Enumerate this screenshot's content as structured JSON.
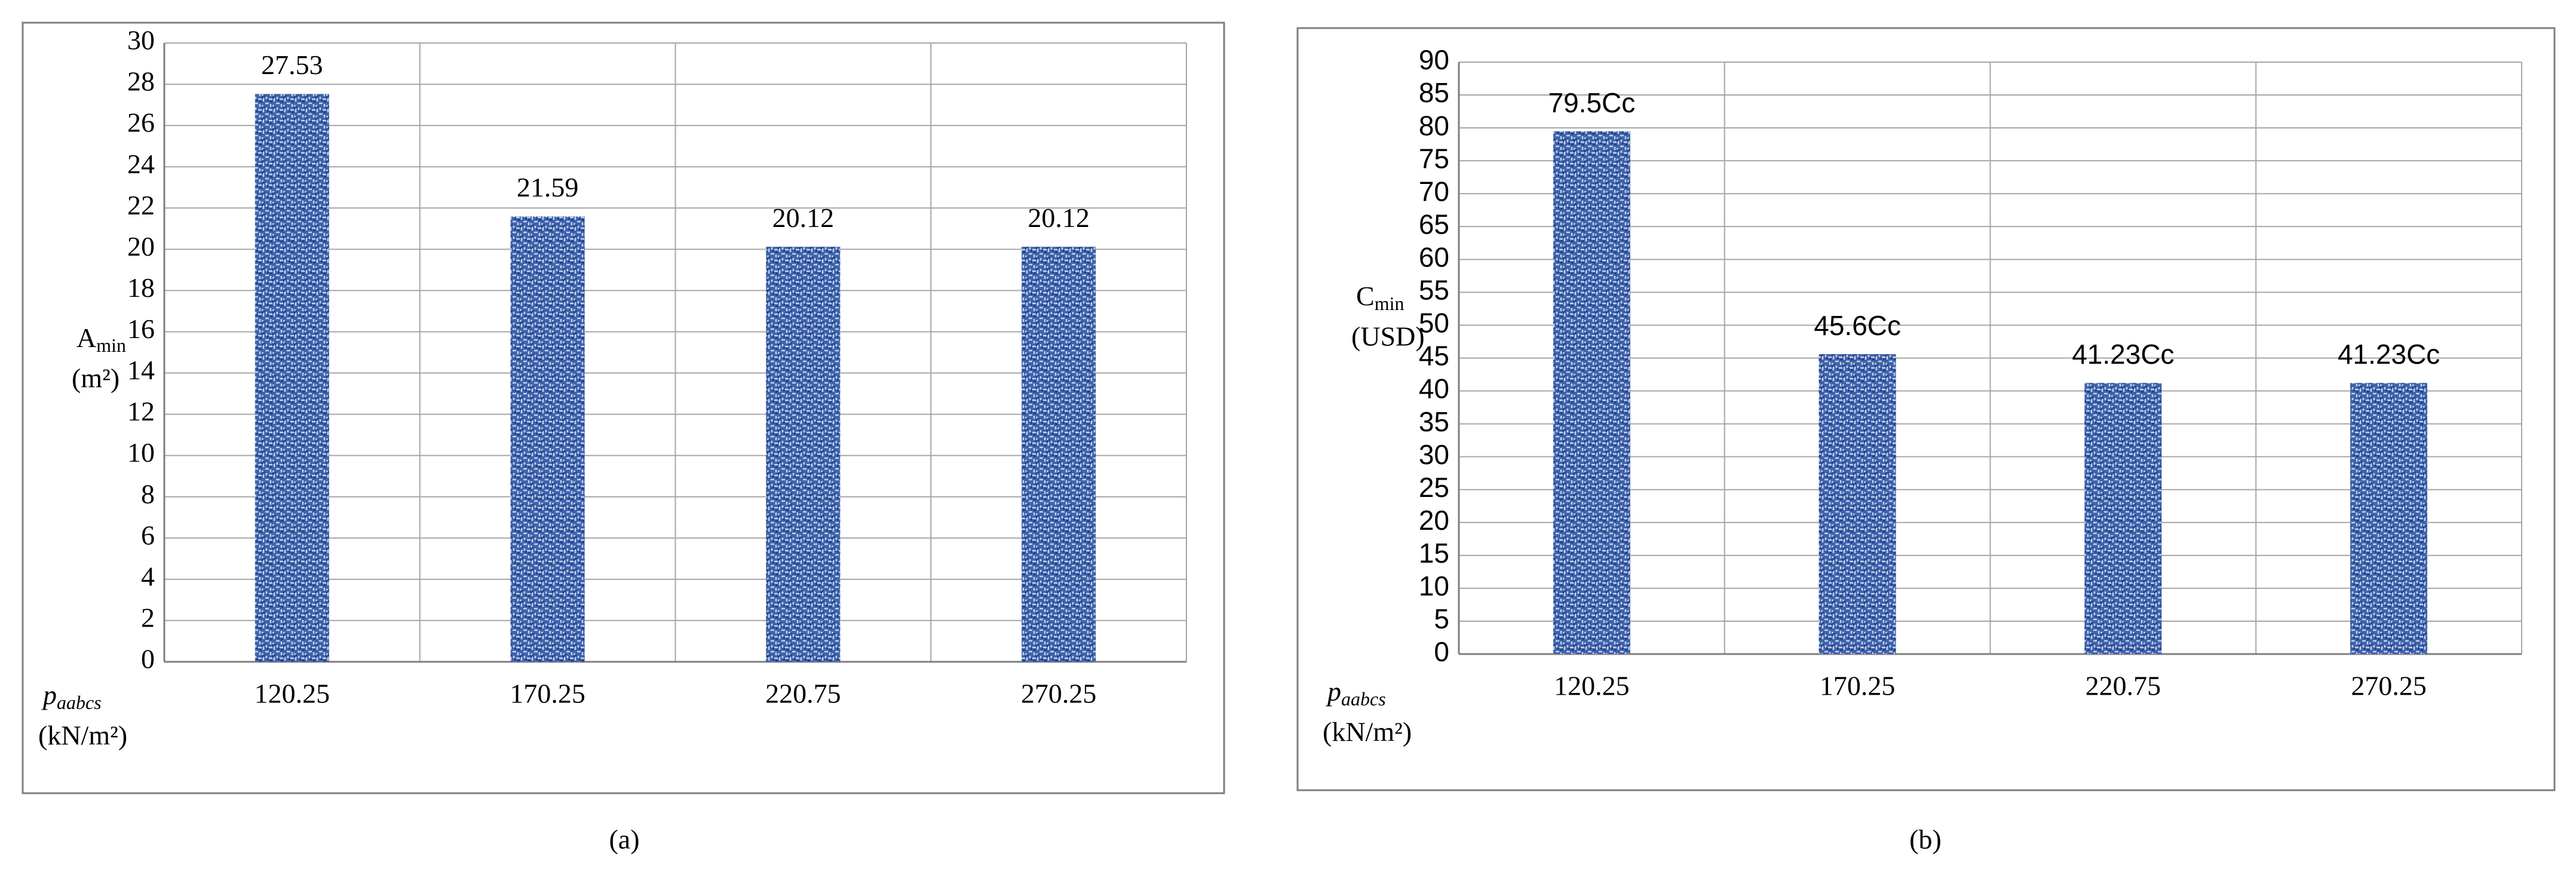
{
  "chart_data": [
    {
      "type": "bar",
      "caption": "(a)",
      "y_label": {
        "symbol": "A",
        "subscript": "min",
        "unit": "(m²)"
      },
      "x_label": {
        "symbol": "p",
        "subscript": "aabcs",
        "unit": "(kN/m²)"
      },
      "categories": [
        "120.25",
        "170.25",
        "220.75",
        "270.25"
      ],
      "values": [
        27.53,
        21.59,
        20.12,
        20.12
      ],
      "color": "#3d62ad",
      "ylim": [
        0,
        30
      ],
      "yticks": [
        0,
        2,
        4,
        6,
        8,
        10,
        12,
        14,
        16,
        18,
        20,
        22,
        24,
        26,
        28,
        30
      ],
      "grid": true
    },
    {
      "type": "bar",
      "caption": "(b)",
      "y_label": {
        "symbol": "C",
        "subscript": "min",
        "unit": "(USD)"
      },
      "x_label": {
        "symbol": "p",
        "subscript": "aabcs",
        "unit": "(kN/m²)"
      },
      "categories": [
        "120.25",
        "170.25",
        "220.75",
        "270.25"
      ],
      "values": [
        79.5,
        45.6,
        41.23,
        41.23
      ],
      "value_labels": [
        "79.5Cc",
        "45.6Cc",
        "41.23Cc",
        "41.23Cc"
      ],
      "color": "#3d62ad",
      "ylim": [
        0,
        90
      ],
      "yticks": [
        0,
        5,
        10,
        15,
        20,
        25,
        30,
        35,
        40,
        45,
        50,
        55,
        60,
        65,
        70,
        75,
        80,
        85,
        90
      ],
      "grid": true
    }
  ]
}
